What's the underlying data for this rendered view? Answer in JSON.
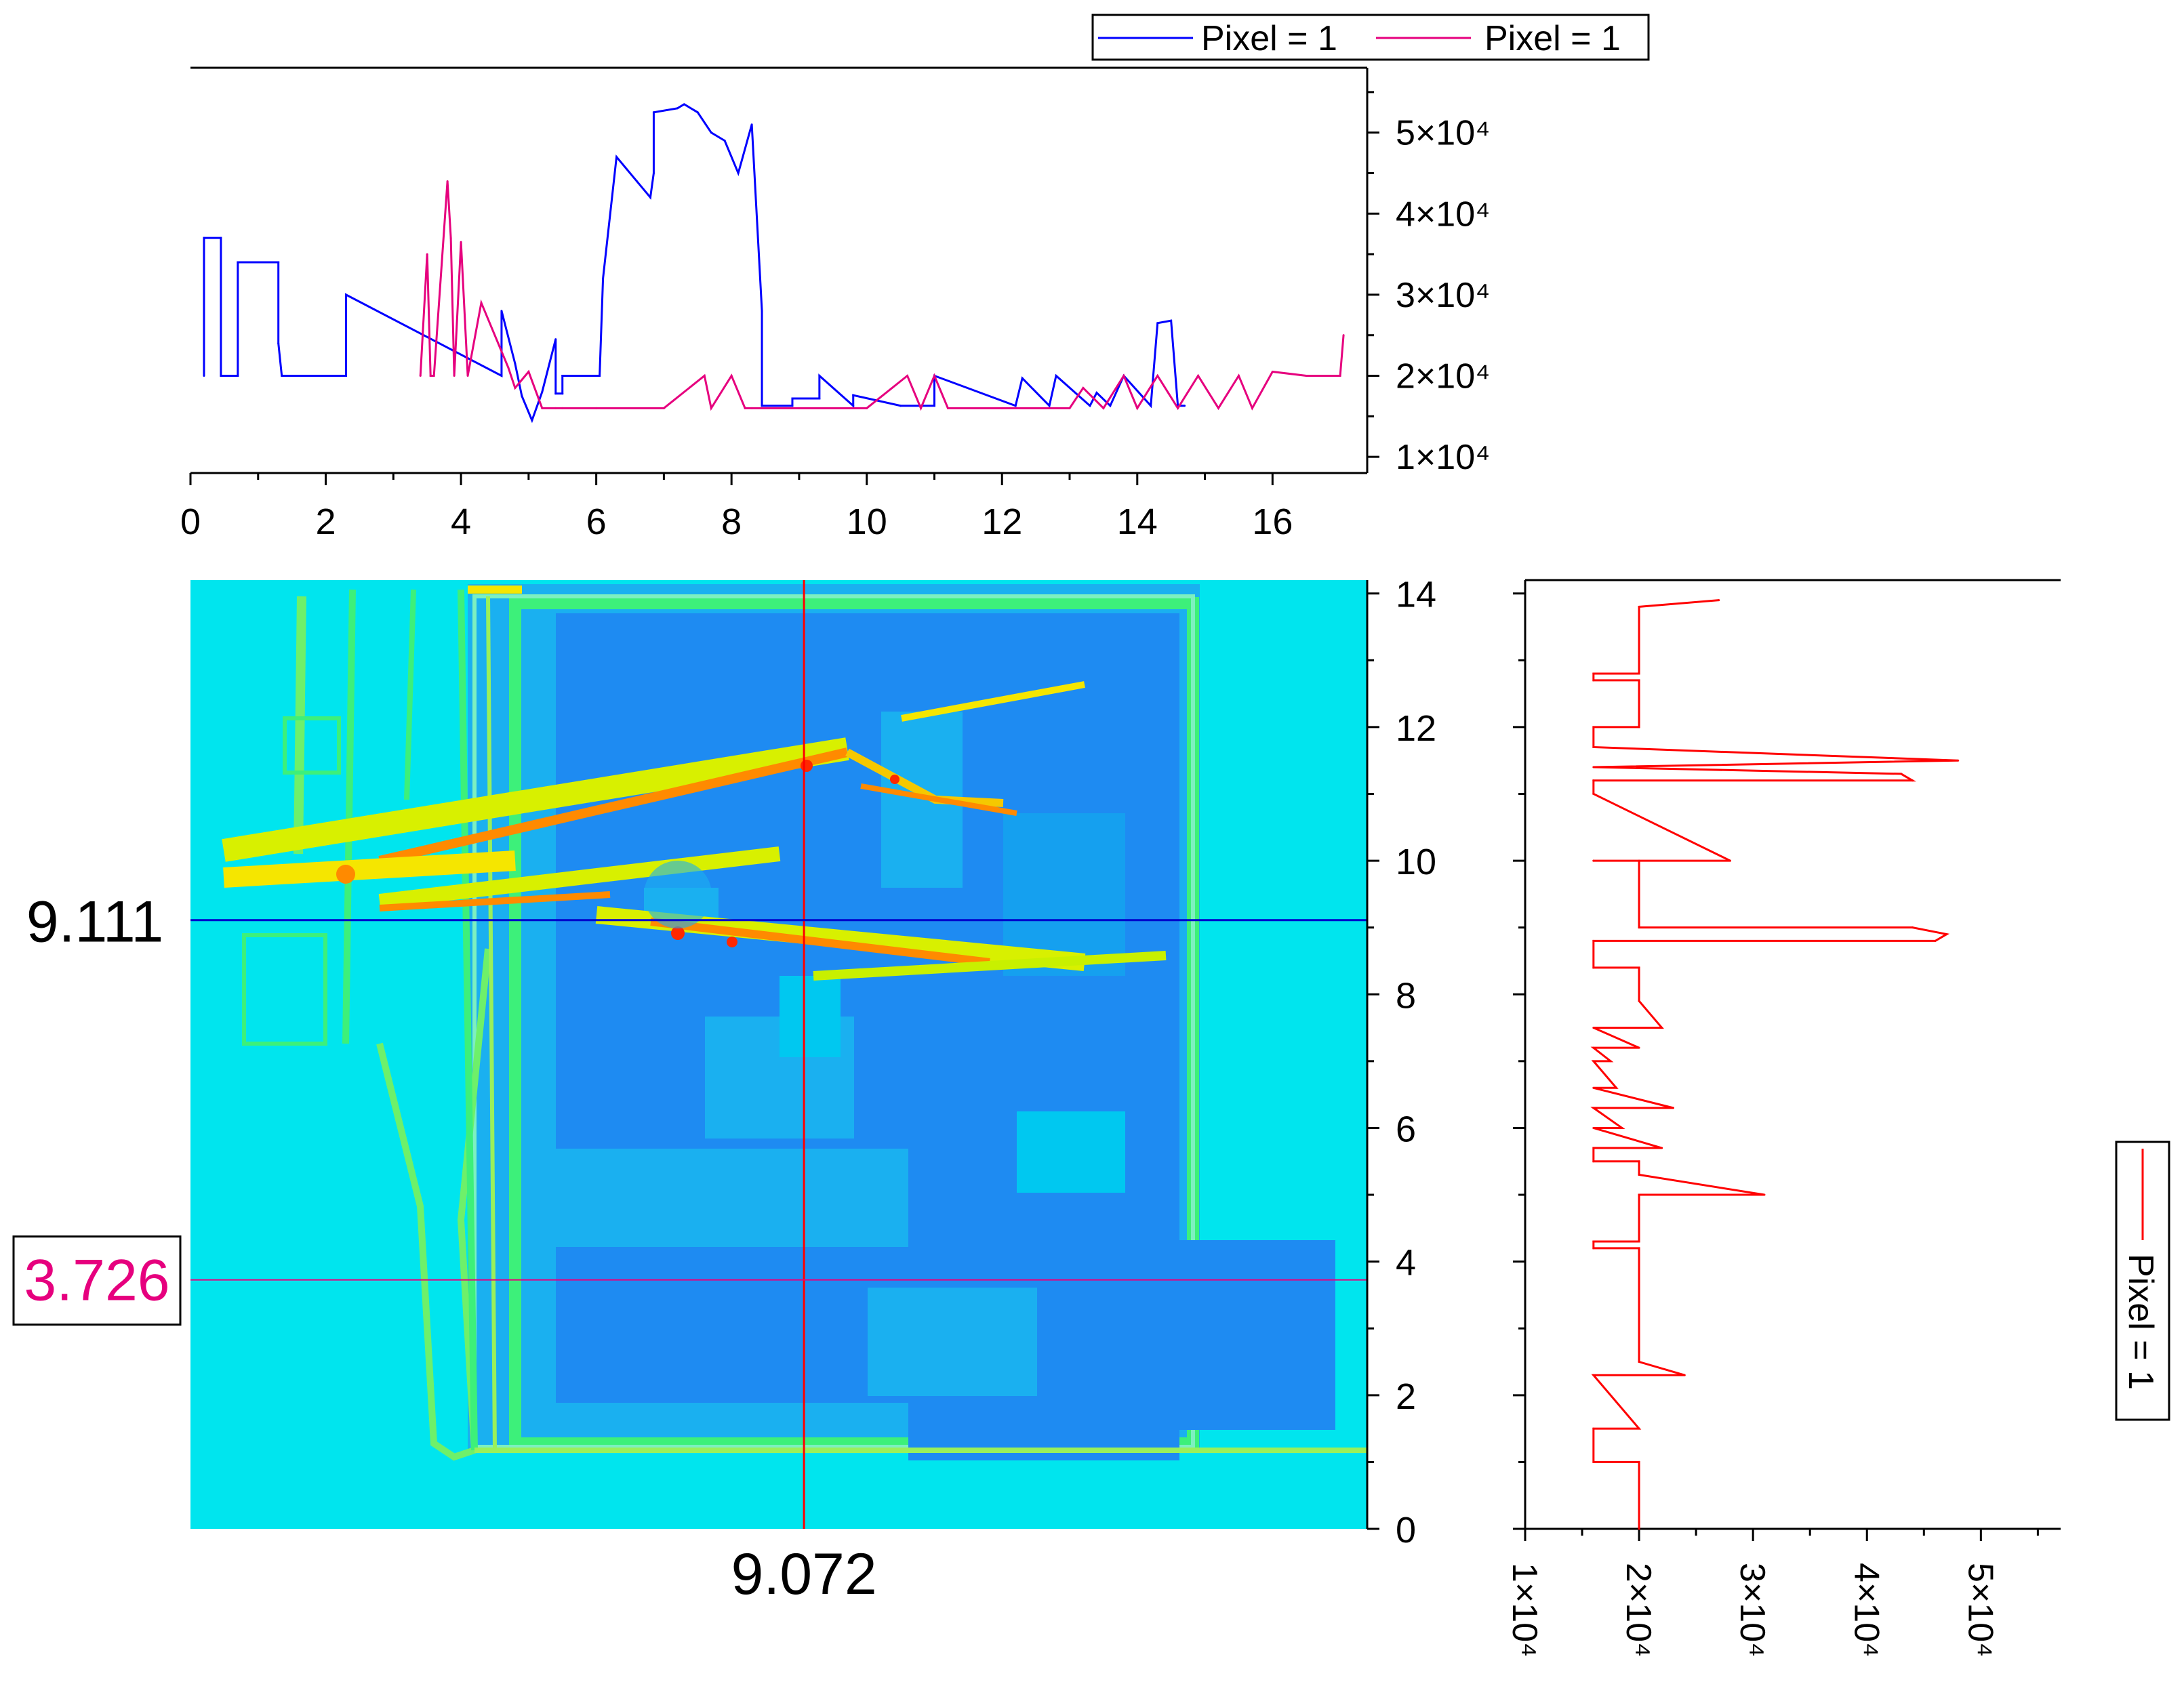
{
  "colors": {
    "series_blue": "#0000ff",
    "series_magenta": "#e6007e",
    "series_red": "#ff0000",
    "crosshair_v": "#ff0000",
    "crosshair_h_blue": "#0000cc",
    "crosshair_h_magenta": "#e6007e",
    "map_bg": "#00e5ee",
    "map_dark": "#1e8bf2",
    "map_mid": "#1ab0f0",
    "map_green": "#3df07a",
    "map_yellow": "#f5e600",
    "map_orange": "#ff8a00",
    "map_red": "#ff2800"
  },
  "top_legend": {
    "entries": [
      {
        "label": "Pixel = 1",
        "color": "#0000ff"
      },
      {
        "label": "Pixel = 1",
        "color": "#e6007e"
      }
    ]
  },
  "right_legend": {
    "entries": [
      {
        "label": "Pixel = 1",
        "color": "#ff0000"
      }
    ]
  },
  "cursor_labels": {
    "x_value": "9.072",
    "y_value_blue": "9.111",
    "y_value_magenta": "3.726"
  },
  "chart_data": [
    {
      "panel": "top-profile",
      "type": "line",
      "x_ticks": [
        "0",
        "2",
        "4",
        "6",
        "8",
        "10",
        "12",
        "14",
        "16"
      ],
      "xlim": [
        0,
        17.4
      ],
      "y_ticks": [
        "1×10⁴",
        "2×10⁴",
        "3×10⁴",
        "4×10⁴",
        "5×10⁴"
      ],
      "y_tick_values": [
        10000,
        20000,
        30000,
        40000,
        50000
      ],
      "ylim": [
        8000,
        58000
      ],
      "y_axis_side": "right",
      "grid": false,
      "series": [
        {
          "name": "Pixel = 1",
          "color": "#0000ff",
          "x": [
            0.2,
            0.2,
            0.45,
            0.45,
            0.7,
            0.7,
            1.3,
            1.3,
            1.35,
            2.3,
            2.3,
            4.6,
            4.6,
            4.8,
            4.9,
            5.05,
            5.2,
            5.4,
            5.4,
            5.5,
            5.5,
            6.05,
            6.1,
            6.3,
            6.6,
            6.8,
            6.85,
            6.85,
            7.2,
            7.3,
            7.5,
            7.7,
            7.9,
            8.1,
            8.3,
            8.45,
            8.45,
            8.9,
            8.9,
            9.3,
            9.3,
            9.8,
            9.8,
            10.5,
            10.5,
            11.0,
            11.0,
            12.2,
            12.3,
            12.7,
            12.8,
            13.3,
            13.4,
            13.6,
            13.8,
            14.2,
            14.3,
            14.5,
            14.6,
            14.7
          ],
          "y": [
            20000,
            37000,
            37000,
            20000,
            20000,
            34000,
            34000,
            24000,
            20000,
            20000,
            30000,
            20000,
            28000,
            21500,
            17500,
            14500,
            18000,
            24500,
            17800,
            17800,
            20000,
            20000,
            32000,
            47000,
            44000,
            42000,
            45000,
            52500,
            53000,
            53500,
            52500,
            50000,
            49000,
            45000,
            51000,
            28000,
            16300,
            16300,
            17200,
            17200,
            20000,
            16300,
            17600,
            16300,
            16300,
            16300,
            20000,
            16300,
            19700,
            16300,
            20000,
            16300,
            17900,
            16300,
            20000,
            16300,
            26500,
            26800,
            16300,
            16300
          ]
        },
        {
          "name": "Pixel = 1",
          "color": "#e6007e",
          "x": [
            3.4,
            3.5,
            3.55,
            3.6,
            3.8,
            3.85,
            3.9,
            4.0,
            4.1,
            4.3,
            4.7,
            4.8,
            5.0,
            5.2,
            5.4,
            5.5,
            6.0,
            7.0,
            7.6,
            7.7,
            8.0,
            8.2,
            8.3,
            9.0,
            10.0,
            10.6,
            10.8,
            11.0,
            11.2,
            12.0,
            13.0,
            13.2,
            13.5,
            13.8,
            14.0,
            14.3,
            14.6,
            14.9,
            15.2,
            15.5,
            15.7,
            16.0,
            16.5,
            17.0,
            17.05
          ],
          "y": [
            20000,
            35000,
            20000,
            20000,
            44000,
            37000,
            20000,
            36500,
            20000,
            29000,
            21000,
            18500,
            20500,
            16000,
            16000,
            16000,
            16000,
            16000,
            20000,
            16000,
            20000,
            16000,
            16000,
            16000,
            16000,
            20000,
            16000,
            20000,
            16000,
            16000,
            16000,
            18500,
            16000,
            20000,
            16000,
            20000,
            16000,
            20000,
            16000,
            20000,
            16000,
            20500,
            20000,
            20000,
            25000
          ]
        }
      ]
    },
    {
      "panel": "map",
      "type": "heatmap",
      "x_ticks": [
        "0",
        "2",
        "4",
        "6",
        "8",
        "10",
        "12",
        "14",
        "16"
      ],
      "xlim": [
        0,
        17.4
      ],
      "y_ticks": [
        "0",
        "2",
        "4",
        "6",
        "8",
        "10",
        "12",
        "14"
      ],
      "ylim": [
        0,
        14.2
      ],
      "y_axis_side": "right",
      "crosshair": {
        "x": 9.072,
        "y_blue": 9.111,
        "y_magenta": 3.726
      }
    },
    {
      "panel": "right-profile",
      "type": "line",
      "x_ticks": [
        "1×10⁴",
        "2×10⁴",
        "3×10⁴",
        "4×10⁴",
        "5×10⁴"
      ],
      "x_tick_values": [
        10000,
        20000,
        30000,
        40000,
        50000
      ],
      "xlim": [
        10000,
        57000
      ],
      "y_ticks": [
        "0",
        "2",
        "4",
        "6",
        "8",
        "10",
        "12",
        "14"
      ],
      "ylim": [
        0,
        14.2
      ],
      "grid": false,
      "series": [
        {
          "name": "Pixel = 1",
          "color": "#ff0000",
          "x": [
            20000,
            20000,
            16000,
            16000,
            20000,
            16000,
            24000,
            20000,
            20000,
            16000,
            16000,
            20000,
            20000,
            31000,
            20000,
            20000,
            16000,
            16000,
            22000,
            16000,
            18500,
            16000,
            23000,
            16000,
            18000,
            16000,
            17500,
            16000,
            20000,
            16000,
            22000,
            20000,
            20000,
            16000,
            16000,
            46000,
            47000,
            44000,
            20000,
            20000,
            16000,
            16000,
            28000,
            16000,
            16000,
            16000,
            44000,
            43000,
            16000,
            48000,
            16000,
            16000,
            20000,
            20000,
            16000,
            16000,
            20000,
            20000,
            27000
          ],
          "y": [
            0,
            1.0,
            1.0,
            1.5,
            1.5,
            2.3,
            2.3,
            2.5,
            4.2,
            4.2,
            4.3,
            4.3,
            5.0,
            5.0,
            5.3,
            5.5,
            5.5,
            5.7,
            5.7,
            6.0,
            6.0,
            6.3,
            6.3,
            6.6,
            6.6,
            7.0,
            7.0,
            7.2,
            7.2,
            7.5,
            7.5,
            7.9,
            8.4,
            8.4,
            8.8,
            8.8,
            8.9,
            9.0,
            9.0,
            10.0,
            10.0,
            10.0,
            10.0,
            11.0,
            11.0,
            11.2,
            11.2,
            11.3,
            11.4,
            11.5,
            11.7,
            12.0,
            12.0,
            12.7,
            12.7,
            12.8,
            12.8,
            13.8,
            13.9
          ]
        }
      ]
    }
  ]
}
